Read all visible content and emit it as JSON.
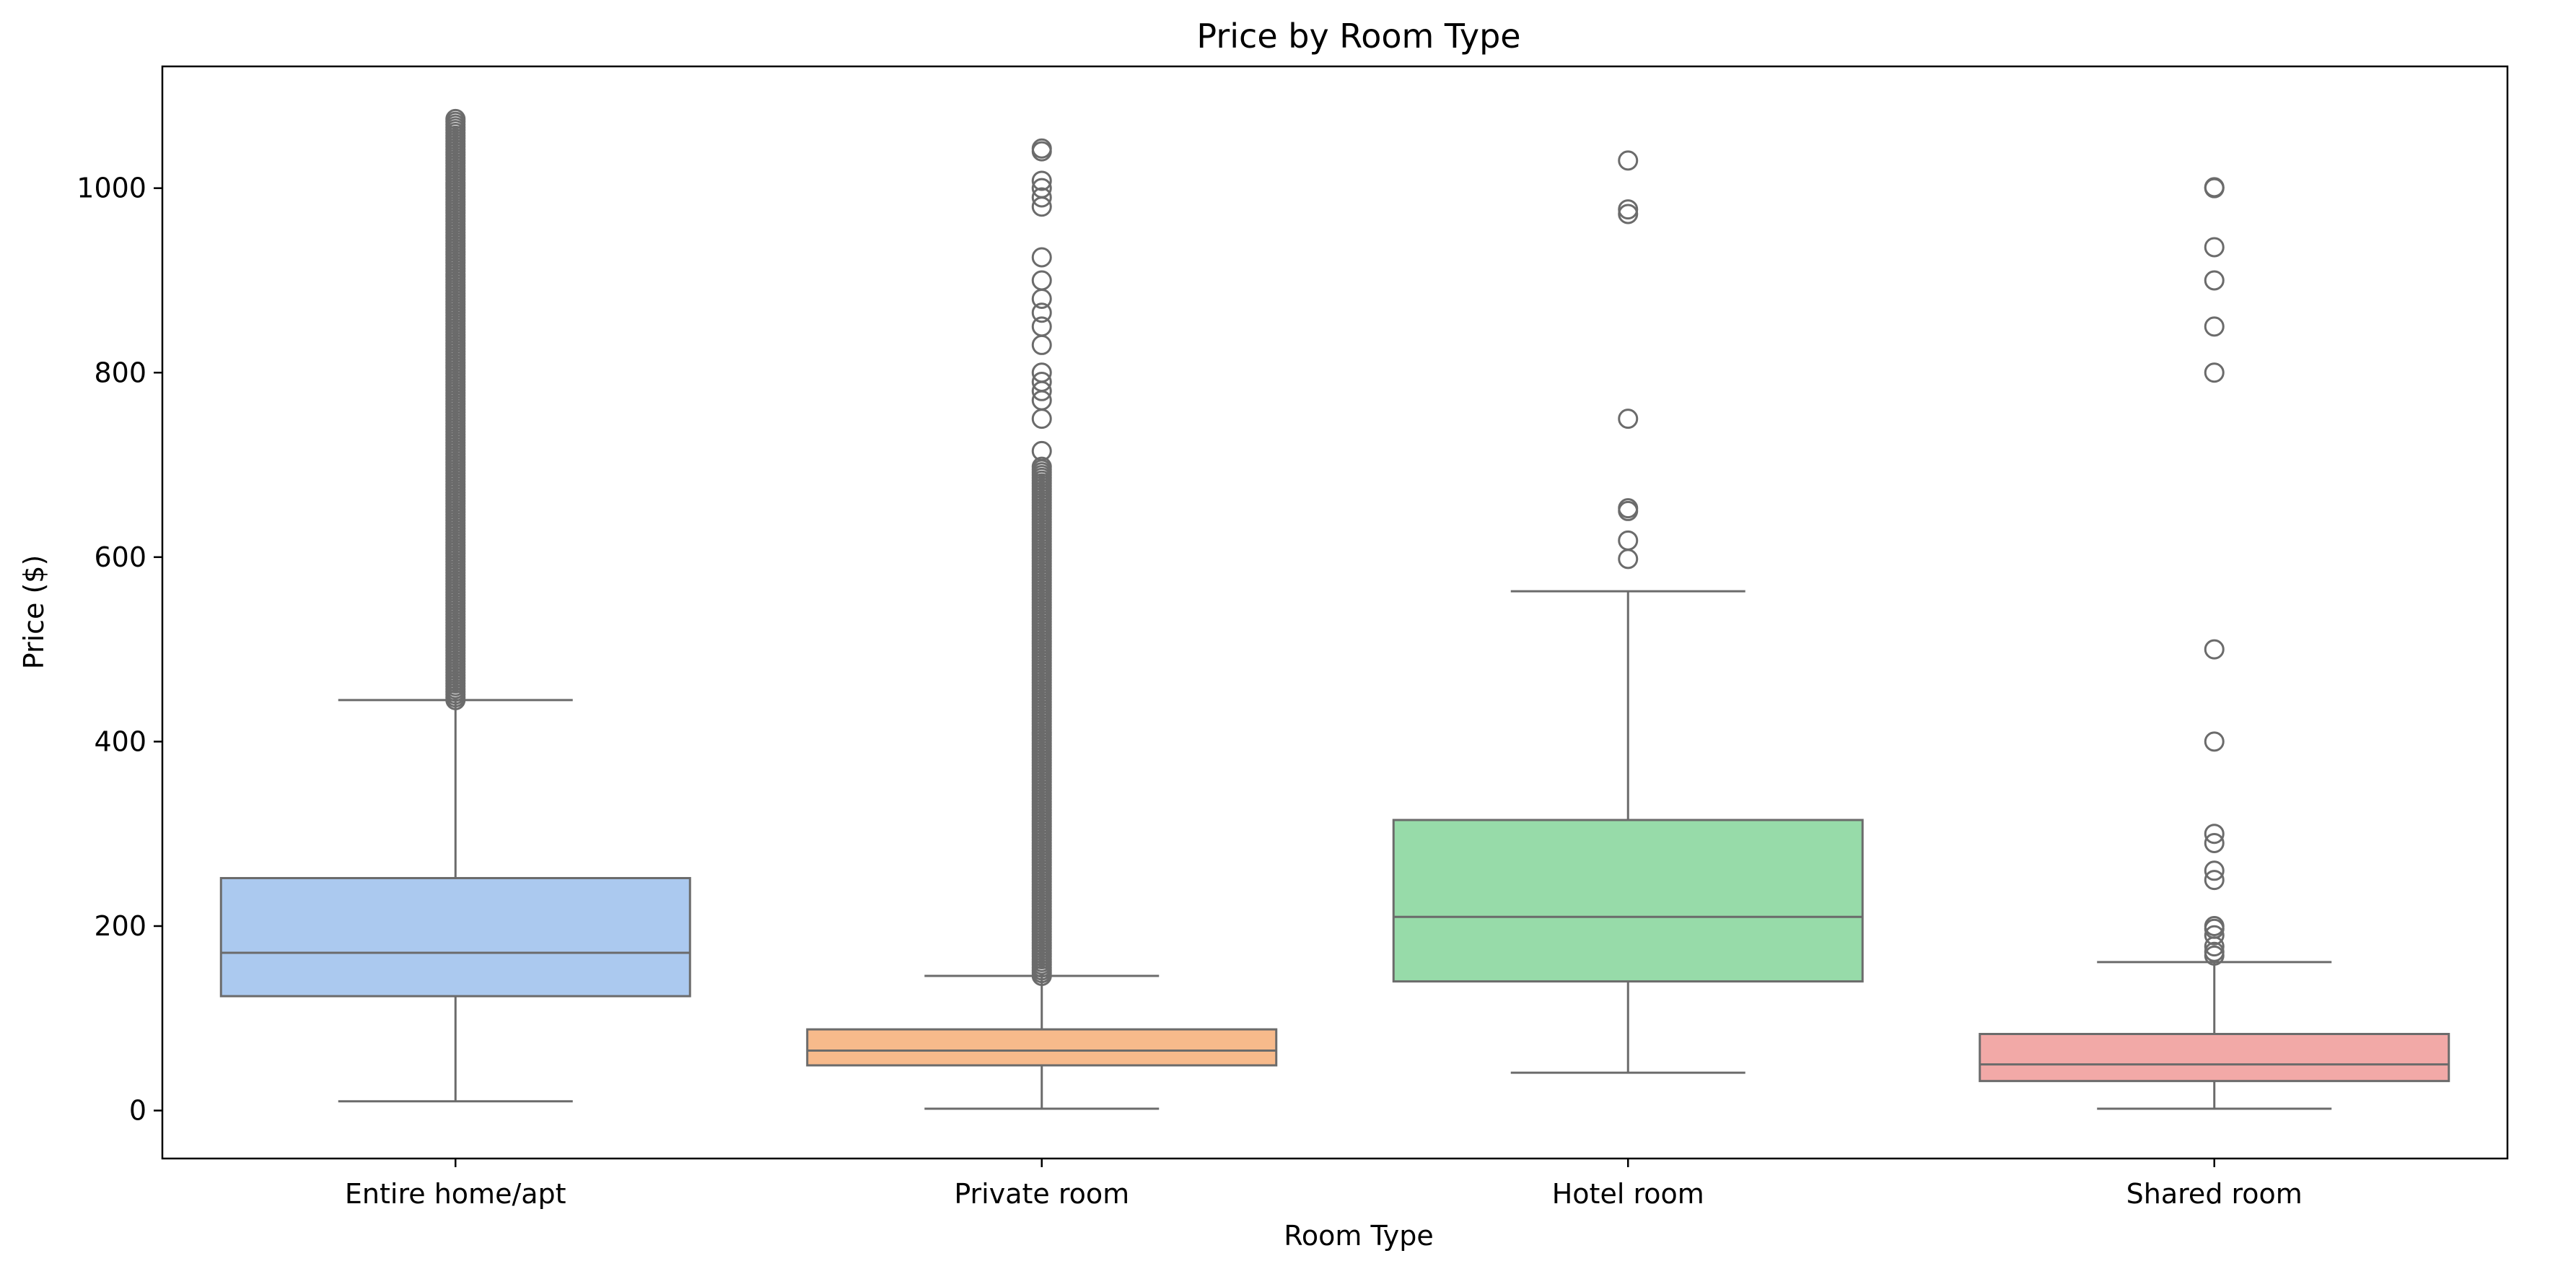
{
  "chart_data": {
    "type": "box",
    "title": "Price by Room Type",
    "xlabel": "Room Type",
    "ylabel": "Price ($)",
    "ylim": [
      -52,
      1132
    ],
    "yticks": [
      0,
      200,
      400,
      600,
      800,
      1000
    ],
    "grid": false,
    "categories": [
      "Entire home/apt",
      "Private room",
      "Hotel room",
      "Shared room"
    ],
    "boxes": [
      {
        "category": "Entire home/apt",
        "color": "#abc9ef",
        "whisker_low": 10,
        "q1": 124,
        "median": 171,
        "q3": 252,
        "whisker_high": 445,
        "outliers_dense_range": [
          445,
          1075
        ],
        "outliers": []
      },
      {
        "category": "Private room",
        "color": "#f7ba8b",
        "whisker_low": 2,
        "q1": 49,
        "median": 65,
        "q3": 88,
        "whisker_high": 146,
        "outliers_dense_range": [
          146,
          700
        ],
        "outliers": [
          715,
          750,
          770,
          780,
          790,
          800,
          830,
          850,
          865,
          880,
          900,
          925,
          980,
          990,
          1000,
          1008,
          1040,
          1043
        ]
      },
      {
        "category": "Hotel room",
        "color": "#97dba9",
        "whisker_low": 41,
        "q1": 140,
        "median": 210,
        "q3": 315,
        "whisker_high": 563,
        "outliers_dense_range": null,
        "outliers": [
          598,
          618,
          650,
          653,
          750,
          972,
          977,
          1030
        ]
      },
      {
        "category": "Shared room",
        "color": "#f2a9a7",
        "whisker_low": 2,
        "q1": 32,
        "median": 50,
        "q3": 83,
        "whisker_high": 161,
        "outliers_dense_range": null,
        "outliers": [
          168,
          172,
          178,
          190,
          197,
          200,
          250,
          260,
          290,
          300,
          400,
          500,
          800,
          850,
          900,
          936,
          1000,
          1001
        ]
      }
    ],
    "style": {
      "line_color": "#6b6b6b",
      "axis_color": "#000000"
    }
  }
}
